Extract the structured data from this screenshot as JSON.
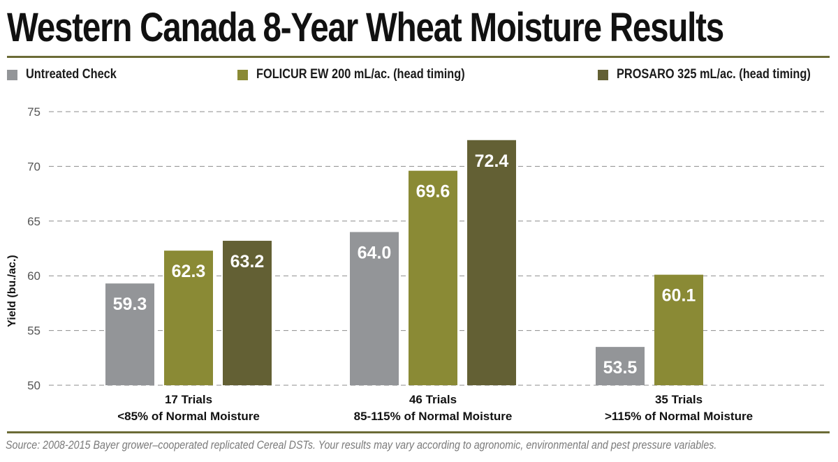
{
  "title": "Western Canada 8-Year Wheat Moisture Results",
  "source": "Source: 2008-2015 Bayer grower–cooperated replicated Cereal DSTs. Your results may vary according to agronomic, environmental and pest pressure variables.",
  "chart_data": {
    "type": "bar",
    "title": "Western Canada 8-Year Wheat Moisture Results",
    "xlabel": "",
    "ylabel": "Yield (bu./ac.)",
    "ylim": [
      50,
      75
    ],
    "yticks": [
      "50",
      "55",
      "60",
      "65",
      "70",
      "75"
    ],
    "grid": "horizontal-dashed",
    "legend_position": "top",
    "categories": [
      [
        "17 Trials",
        "<85% of Normal Moisture"
      ],
      [
        "46 Trials",
        "85-115% of Normal Moisture"
      ],
      [
        "35 Trials",
        ">115% of Normal Moisture"
      ]
    ],
    "series": [
      {
        "name": "Untreated Check",
        "color": "#939598",
        "values": [
          59.3,
          64.0,
          53.5
        ],
        "labels": [
          "59.3",
          "64.0",
          "53.5"
        ]
      },
      {
        "name": "FOLICUR EW 200 mL/ac. (head timing)",
        "color": "#8a8a35",
        "values": [
          62.3,
          69.6,
          60.1
        ],
        "labels": [
          "62.3",
          "69.6",
          "60.1"
        ]
      },
      {
        "name": "PROSARO 325 mL/ac. (head timing)",
        "color": "#636034",
        "values": [
          63.2,
          72.4,
          null
        ],
        "labels": [
          "63.2",
          "72.4",
          ""
        ]
      }
    ]
  }
}
